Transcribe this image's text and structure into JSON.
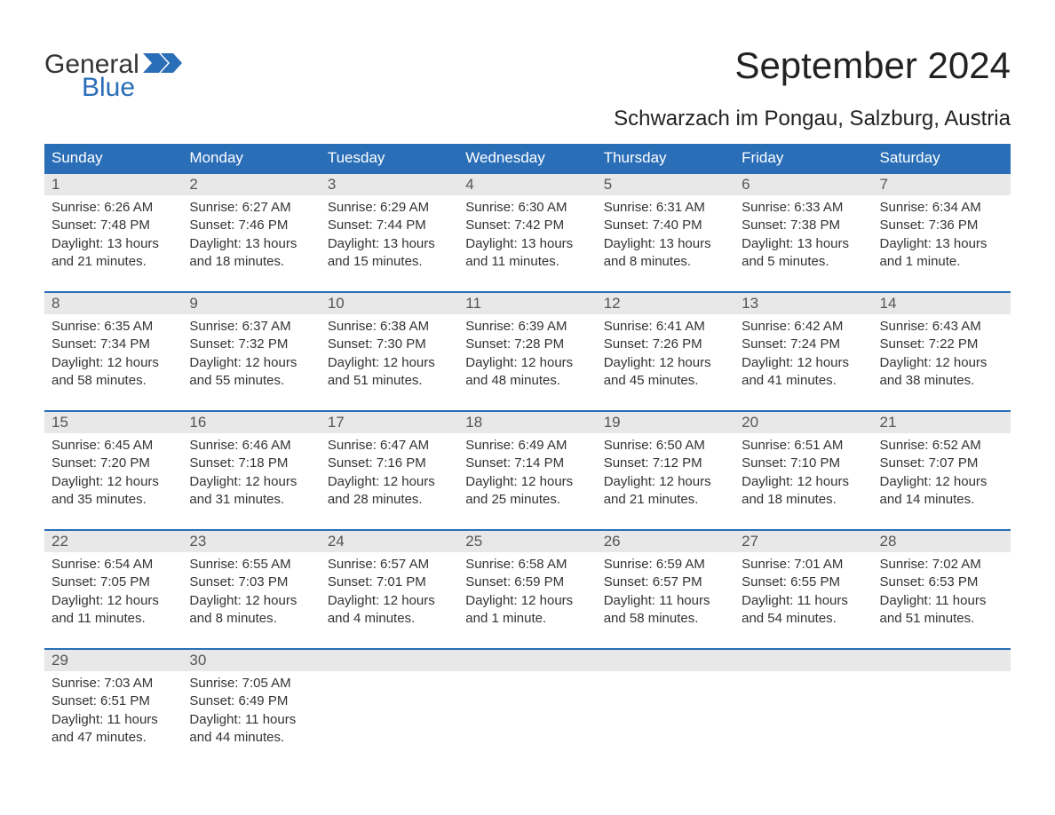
{
  "brand": {
    "top": "General",
    "bottom": "Blue"
  },
  "title": "September 2024",
  "location": "Schwarzach im Pongau, Salzburg, Austria",
  "colors": {
    "header_bg": "#2a6eb8",
    "header_text": "#ffffff",
    "daynum_bg": "#e8e8e8",
    "border": "#2a6eb8",
    "body_text": "#333333",
    "page_bg": "#ffffff"
  },
  "weekdays": [
    "Sunday",
    "Monday",
    "Tuesday",
    "Wednesday",
    "Thursday",
    "Friday",
    "Saturday"
  ],
  "days": [
    {
      "n": "1",
      "sunrise": "6:26 AM",
      "sunset": "7:48 PM",
      "daylight": "13 hours and 21 minutes."
    },
    {
      "n": "2",
      "sunrise": "6:27 AM",
      "sunset": "7:46 PM",
      "daylight": "13 hours and 18 minutes."
    },
    {
      "n": "3",
      "sunrise": "6:29 AM",
      "sunset": "7:44 PM",
      "daylight": "13 hours and 15 minutes."
    },
    {
      "n": "4",
      "sunrise": "6:30 AM",
      "sunset": "7:42 PM",
      "daylight": "13 hours and 11 minutes."
    },
    {
      "n": "5",
      "sunrise": "6:31 AM",
      "sunset": "7:40 PM",
      "daylight": "13 hours and 8 minutes."
    },
    {
      "n": "6",
      "sunrise": "6:33 AM",
      "sunset": "7:38 PM",
      "daylight": "13 hours and 5 minutes."
    },
    {
      "n": "7",
      "sunrise": "6:34 AM",
      "sunset": "7:36 PM",
      "daylight": "13 hours and 1 minute."
    },
    {
      "n": "8",
      "sunrise": "6:35 AM",
      "sunset": "7:34 PM",
      "daylight": "12 hours and 58 minutes."
    },
    {
      "n": "9",
      "sunrise": "6:37 AM",
      "sunset": "7:32 PM",
      "daylight": "12 hours and 55 minutes."
    },
    {
      "n": "10",
      "sunrise": "6:38 AM",
      "sunset": "7:30 PM",
      "daylight": "12 hours and 51 minutes."
    },
    {
      "n": "11",
      "sunrise": "6:39 AM",
      "sunset": "7:28 PM",
      "daylight": "12 hours and 48 minutes."
    },
    {
      "n": "12",
      "sunrise": "6:41 AM",
      "sunset": "7:26 PM",
      "daylight": "12 hours and 45 minutes."
    },
    {
      "n": "13",
      "sunrise": "6:42 AM",
      "sunset": "7:24 PM",
      "daylight": "12 hours and 41 minutes."
    },
    {
      "n": "14",
      "sunrise": "6:43 AM",
      "sunset": "7:22 PM",
      "daylight": "12 hours and 38 minutes."
    },
    {
      "n": "15",
      "sunrise": "6:45 AM",
      "sunset": "7:20 PM",
      "daylight": "12 hours and 35 minutes."
    },
    {
      "n": "16",
      "sunrise": "6:46 AM",
      "sunset": "7:18 PM",
      "daylight": "12 hours and 31 minutes."
    },
    {
      "n": "17",
      "sunrise": "6:47 AM",
      "sunset": "7:16 PM",
      "daylight": "12 hours and 28 minutes."
    },
    {
      "n": "18",
      "sunrise": "6:49 AM",
      "sunset": "7:14 PM",
      "daylight": "12 hours and 25 minutes."
    },
    {
      "n": "19",
      "sunrise": "6:50 AM",
      "sunset": "7:12 PM",
      "daylight": "12 hours and 21 minutes."
    },
    {
      "n": "20",
      "sunrise": "6:51 AM",
      "sunset": "7:10 PM",
      "daylight": "12 hours and 18 minutes."
    },
    {
      "n": "21",
      "sunrise": "6:52 AM",
      "sunset": "7:07 PM",
      "daylight": "12 hours and 14 minutes."
    },
    {
      "n": "22",
      "sunrise": "6:54 AM",
      "sunset": "7:05 PM",
      "daylight": "12 hours and 11 minutes."
    },
    {
      "n": "23",
      "sunrise": "6:55 AM",
      "sunset": "7:03 PM",
      "daylight": "12 hours and 8 minutes."
    },
    {
      "n": "24",
      "sunrise": "6:57 AM",
      "sunset": "7:01 PM",
      "daylight": "12 hours and 4 minutes."
    },
    {
      "n": "25",
      "sunrise": "6:58 AM",
      "sunset": "6:59 PM",
      "daylight": "12 hours and 1 minute."
    },
    {
      "n": "26",
      "sunrise": "6:59 AM",
      "sunset": "6:57 PM",
      "daylight": "11 hours and 58 minutes."
    },
    {
      "n": "27",
      "sunrise": "7:01 AM",
      "sunset": "6:55 PM",
      "daylight": "11 hours and 54 minutes."
    },
    {
      "n": "28",
      "sunrise": "7:02 AM",
      "sunset": "6:53 PM",
      "daylight": "11 hours and 51 minutes."
    },
    {
      "n": "29",
      "sunrise": "7:03 AM",
      "sunset": "6:51 PM",
      "daylight": "11 hours and 47 minutes."
    },
    {
      "n": "30",
      "sunrise": "7:05 AM",
      "sunset": "6:49 PM",
      "daylight": "11 hours and 44 minutes."
    }
  ],
  "labels": {
    "sunrise": "Sunrise:",
    "sunset": "Sunset:",
    "daylight": "Daylight:"
  },
  "layout": {
    "columns": 7,
    "rows": 5,
    "first_day_column": 0,
    "fontsize_title": 42,
    "fontsize_location": 24,
    "fontsize_weekday": 17,
    "fontsize_body": 15
  }
}
